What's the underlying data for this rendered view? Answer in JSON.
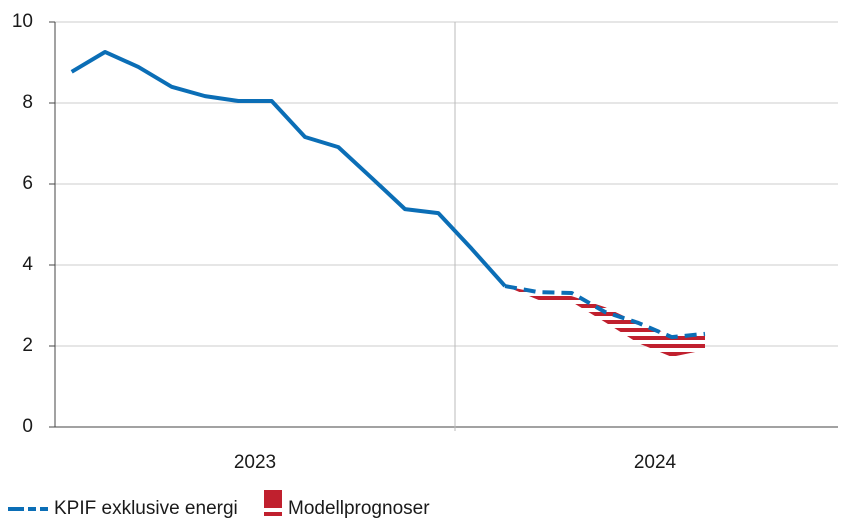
{
  "chart_data": {
    "type": "line",
    "categories": [
      null,
      null,
      null,
      null,
      null,
      null,
      null,
      null,
      null,
      null,
      null,
      null,
      null,
      null,
      null,
      null,
      null,
      null,
      null,
      null
    ],
    "year_groups": [
      {
        "label": "2023",
        "count": 12
      },
      {
        "label": "2024",
        "count": 12
      }
    ],
    "ylim": [
      0,
      10
    ],
    "yticks": [
      0,
      2,
      4,
      6,
      8,
      10
    ],
    "grid": true,
    "series": [
      {
        "name": "KPIF exklusive energi",
        "color": "#0b6eb6",
        "values": [
          8.77,
          9.26,
          8.89,
          8.4,
          8.17,
          8.05,
          8.05,
          7.16,
          6.91,
          6.15,
          5.38,
          5.28,
          4.4,
          3.48,
          null,
          null,
          null,
          null,
          null,
          null
        ],
        "forecast": [
          null,
          null,
          null,
          null,
          null,
          null,
          null,
          null,
          null,
          null,
          null,
          null,
          null,
          3.48,
          3.33,
          3.31,
          2.84,
          2.57,
          2.22,
          2.3
        ]
      }
    ],
    "band": {
      "name": "Modellprognoser",
      "color": "#c0202e",
      "upper": [
        null,
        null,
        null,
        null,
        null,
        null,
        null,
        null,
        null,
        null,
        null,
        null,
        null,
        3.48,
        3.31,
        3.23,
        2.96,
        2.57,
        2.25,
        2.25
      ],
      "lower": [
        null,
        null,
        null,
        null,
        null,
        null,
        null,
        null,
        null,
        null,
        null,
        null,
        null,
        3.48,
        3.14,
        3.09,
        2.59,
        2.07,
        1.73,
        1.9
      ]
    }
  }
}
